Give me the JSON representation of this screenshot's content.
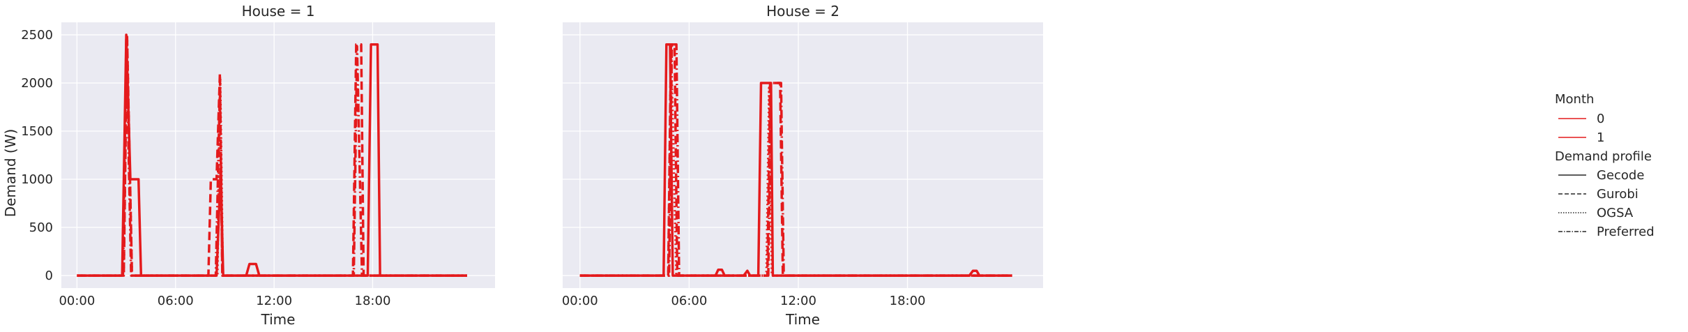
{
  "chart_data": {
    "type": "line",
    "ylabel": "Demand (W)",
    "xlabel": "Time",
    "yticks": [
      0,
      500,
      1000,
      1500,
      2000,
      2500
    ],
    "ytick_labels": [
      "0",
      "500",
      "1000",
      "1500",
      "2000",
      "2500"
    ],
    "ylim": [
      -130,
      2630
    ],
    "xlim_hours": [
      -0.95,
      25.45
    ],
    "xticks_hours": [
      0,
      6,
      12,
      18
    ],
    "xtick_labels": [
      "00:00",
      "06:00",
      "12:00",
      "18:00"
    ],
    "grid": true,
    "colors": {
      "series": "#e41a1c",
      "panel_bg": "#eaeaf2",
      "grid": "#ffffff"
    },
    "legend": {
      "placement": "right",
      "hue_title": "Month",
      "hue_entries": [
        "0",
        "1"
      ],
      "style_title": "Demand profile",
      "style_entries": [
        {
          "label": "Gecode",
          "dash": "solid"
        },
        {
          "label": "Gurobi",
          "dash": "dashed"
        },
        {
          "label": "OGSA",
          "dash": "dotted"
        },
        {
          "label": "Preferred",
          "dash": "dashdot"
        }
      ]
    },
    "panels": [
      {
        "title": "House = 1",
        "series": [
          {
            "style": "solid",
            "points": [
              [
                0,
                0
              ],
              [
                2.75,
                0
              ],
              [
                3.0,
                2500
              ],
              [
                3.25,
                1000
              ],
              [
                3.75,
                1000
              ],
              [
                3.9,
                0
              ],
              [
                8.5,
                0
              ],
              [
                8.75,
                1100
              ],
              [
                8.9,
                0
              ],
              [
                10.3,
                0
              ],
              [
                10.5,
                120
              ],
              [
                10.9,
                120
              ],
              [
                11.1,
                0
              ],
              [
                17.7,
                0
              ],
              [
                17.9,
                2400
              ],
              [
                18.3,
                2400
              ],
              [
                18.45,
                0
              ],
              [
                23.75,
                0
              ]
            ]
          },
          {
            "style": "dashed",
            "points": [
              [
                0,
                0
              ],
              [
                2.85,
                0
              ],
              [
                3.05,
                2500
              ],
              [
                3.35,
                0
              ],
              [
                8.0,
                0
              ],
              [
                8.15,
                1000
              ],
              [
                8.5,
                1000
              ],
              [
                8.7,
                2100
              ],
              [
                8.85,
                0
              ],
              [
                16.8,
                0
              ],
              [
                17.0,
                2400
              ],
              [
                17.3,
                2400
              ],
              [
                17.45,
                0
              ],
              [
                23.75,
                0
              ]
            ]
          },
          {
            "style": "dotted",
            "points": [
              [
                0,
                0
              ],
              [
                2.85,
                0
              ],
              [
                3.05,
                2500
              ],
              [
                3.35,
                0
              ],
              [
                8.55,
                0
              ],
              [
                8.72,
                2050
              ],
              [
                8.88,
                0
              ],
              [
                23.75,
                0
              ]
            ]
          },
          {
            "style": "dashdot",
            "points": [
              [
                0,
                0
              ],
              [
                2.8,
                0
              ],
              [
                3.0,
                2450
              ],
              [
                3.3,
                0
              ],
              [
                8.45,
                0
              ],
              [
                8.7,
                1950
              ],
              [
                8.85,
                0
              ],
              [
                16.85,
                0
              ],
              [
                17.05,
                2380
              ],
              [
                17.35,
                0
              ],
              [
                23.75,
                0
              ]
            ]
          }
        ]
      },
      {
        "title": "House = 2",
        "series": [
          {
            "style": "solid",
            "points": [
              [
                0,
                0
              ],
              [
                4.6,
                0
              ],
              [
                4.75,
                2400
              ],
              [
                4.95,
                2400
              ],
              [
                5.1,
                0
              ],
              [
                7.45,
                0
              ],
              [
                7.6,
                60
              ],
              [
                7.8,
                60
              ],
              [
                7.95,
                0
              ],
              [
                9.0,
                0
              ],
              [
                9.2,
                50
              ],
              [
                9.35,
                0
              ],
              [
                9.8,
                0
              ],
              [
                9.95,
                2000
              ],
              [
                10.5,
                2000
              ],
              [
                10.6,
                0
              ],
              [
                21.4,
                0
              ],
              [
                21.6,
                50
              ],
              [
                21.8,
                50
              ],
              [
                21.95,
                0
              ],
              [
                23.75,
                0
              ]
            ]
          },
          {
            "style": "dashed",
            "points": [
              [
                0,
                0
              ],
              [
                4.85,
                0
              ],
              [
                5.0,
                2400
              ],
              [
                5.2,
                2400
              ],
              [
                5.35,
                0
              ],
              [
                10.3,
                0
              ],
              [
                10.45,
                2000
              ],
              [
                11.0,
                2000
              ],
              [
                11.15,
                0
              ],
              [
                23.75,
                0
              ]
            ]
          },
          {
            "style": "dotted",
            "points": [
              [
                0,
                0
              ],
              [
                4.85,
                0
              ],
              [
                5.0,
                2380
              ],
              [
                5.3,
                0
              ],
              [
                10.25,
                0
              ],
              [
                10.4,
                1950
              ],
              [
                10.55,
                0
              ],
              [
                23.75,
                0
              ]
            ]
          },
          {
            "style": "dashdot",
            "points": [
              [
                0,
                0
              ],
              [
                4.9,
                0
              ],
              [
                5.05,
                2400
              ],
              [
                5.3,
                2400
              ],
              [
                5.45,
                0
              ],
              [
                10.35,
                0
              ],
              [
                10.5,
                2000
              ],
              [
                11.05,
                2000
              ],
              [
                11.2,
                0
              ],
              [
                23.75,
                0
              ]
            ]
          }
        ]
      }
    ]
  }
}
